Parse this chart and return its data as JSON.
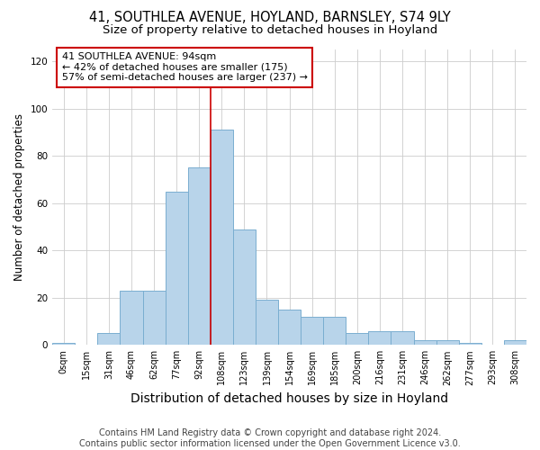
{
  "title_line1": "41, SOUTHLEA AVENUE, HOYLAND, BARNSLEY, S74 9LY",
  "title_line2": "Size of property relative to detached houses in Hoyland",
  "xlabel": "Distribution of detached houses by size in Hoyland",
  "ylabel": "Number of detached properties",
  "footer": "Contains HM Land Registry data © Crown copyright and database right 2024.\nContains public sector information licensed under the Open Government Licence v3.0.",
  "bin_labels": [
    "0sqm",
    "15sqm",
    "31sqm",
    "46sqm",
    "62sqm",
    "77sqm",
    "92sqm",
    "108sqm",
    "123sqm",
    "139sqm",
    "154sqm",
    "169sqm",
    "185sqm",
    "200sqm",
    "216sqm",
    "231sqm",
    "246sqm",
    "262sqm",
    "277sqm",
    "293sqm",
    "308sqm"
  ],
  "bar_heights": [
    1,
    0,
    5,
    23,
    23,
    65,
    75,
    91,
    49,
    19,
    15,
    12,
    12,
    5,
    6,
    6,
    2,
    2,
    1,
    0,
    2
  ],
  "bar_color": "#b8d4ea",
  "bar_edge_color": "#7aaed0",
  "property_line_x": 6.5,
  "property_line_color": "#cc0000",
  "annotation_text": "41 SOUTHLEA AVENUE: 94sqm\n← 42% of detached houses are smaller (175)\n57% of semi-detached houses are larger (237) →",
  "annotation_box_color": "#ffffff",
  "annotation_box_edge": "#cc0000",
  "ylim": [
    0,
    125
  ],
  "yticks": [
    0,
    20,
    40,
    60,
    80,
    100,
    120
  ],
  "background_color": "#ffffff",
  "grid_color": "#cccccc",
  "title_fontsize": 10.5,
  "subtitle_fontsize": 9.5,
  "xlabel_fontsize": 10,
  "ylabel_fontsize": 8.5,
  "tick_fontsize": 7,
  "footer_fontsize": 7,
  "ann_fontsize": 8
}
